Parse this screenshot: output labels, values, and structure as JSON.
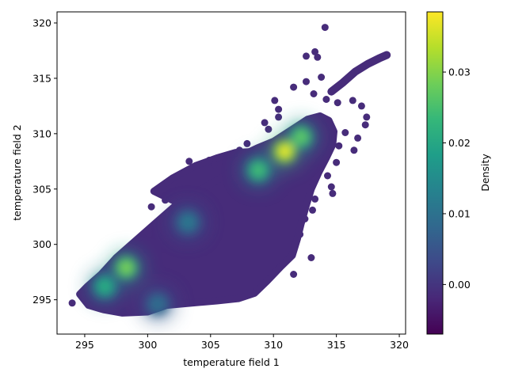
{
  "chart_data": {
    "type": "scatter",
    "title": "",
    "xlabel": "temperature field 1",
    "ylabel": "temperature field 2",
    "xlim": [
      292.8,
      320.5
    ],
    "ylim": [
      291.9,
      321.0
    ],
    "xticks": [
      295,
      300,
      305,
      310,
      315,
      320
    ],
    "yticks": [
      295,
      300,
      305,
      310,
      315,
      320
    ],
    "grid": false,
    "legend": "none",
    "colormap": "viridis",
    "colormap_stops": [
      "#440154",
      "#482878",
      "#3e4989",
      "#31688e",
      "#26828e",
      "#1f9e89",
      "#35b779",
      "#6ece58",
      "#b5de2b",
      "#fde725"
    ],
    "marker_color_low": "#472c7a",
    "colorbar": {
      "label": "Density",
      "min": -0.007,
      "max": 0.0385,
      "ticks": [
        0.0,
        0.01,
        0.02,
        0.03
      ],
      "tick_labels": [
        "0.00",
        "0.01",
        "0.02",
        "0.03"
      ]
    },
    "density_peaks": [
      {
        "x": 310.9,
        "y": 308.4,
        "density": 0.038
      },
      {
        "x": 298.3,
        "y": 297.9,
        "density": 0.03
      },
      {
        "x": 312.2,
        "y": 309.7,
        "density": 0.028
      },
      {
        "x": 308.8,
        "y": 306.7,
        "density": 0.025
      },
      {
        "x": 296.6,
        "y": 296.2,
        "density": 0.022
      },
      {
        "x": 303.2,
        "y": 302.0,
        "density": 0.012
      },
      {
        "x": 300.8,
        "y": 294.6,
        "density": 0.01
      }
    ],
    "main_cloud": [
      [
        294.6,
        295.5
      ],
      [
        295.2,
        296.2
      ],
      [
        296.3,
        297.3
      ],
      [
        297.5,
        298.8
      ],
      [
        299.0,
        300.3
      ],
      [
        300.5,
        301.8
      ],
      [
        302.0,
        303.3
      ],
      [
        303.5,
        304.7
      ],
      [
        305.0,
        305.9
      ],
      [
        306.5,
        307.0
      ],
      [
        307.6,
        308.1
      ],
      [
        308.7,
        308.7
      ],
      [
        310.0,
        309.3
      ],
      [
        311.5,
        310.4
      ],
      [
        312.7,
        311.3
      ],
      [
        313.7,
        311.6
      ],
      [
        314.4,
        311.2
      ],
      [
        314.8,
        310.2
      ],
      [
        314.7,
        309.0
      ],
      [
        314.2,
        307.8
      ],
      [
        313.6,
        306.5
      ],
      [
        313.0,
        305.0
      ],
      [
        312.6,
        303.5
      ],
      [
        312.2,
        301.9
      ],
      [
        311.9,
        300.5
      ],
      [
        311.5,
        299.0
      ],
      [
        310.6,
        298.0
      ],
      [
        309.5,
        296.7
      ],
      [
        308.5,
        295.6
      ],
      [
        307.2,
        295.1
      ],
      [
        305.5,
        294.9
      ],
      [
        303.5,
        294.7
      ],
      [
        301.5,
        294.5
      ],
      [
        300.0,
        293.9
      ],
      [
        298.0,
        293.8
      ],
      [
        296.5,
        294.1
      ],
      [
        295.3,
        294.5
      ]
    ],
    "upper_band": [
      [
        300.5,
        304.8
      ],
      [
        302.0,
        306.0
      ],
      [
        303.8,
        307.1
      ],
      [
        305.5,
        307.8
      ],
      [
        307.0,
        308.3
      ],
      [
        308.6,
        308.4
      ],
      [
        307.6,
        307.4
      ],
      [
        306.0,
        306.1
      ],
      [
        304.0,
        304.8
      ],
      [
        302.5,
        303.7
      ]
    ],
    "diagonal_tail": [
      [
        314.6,
        313.8
      ],
      [
        315.5,
        314.6
      ],
      [
        316.5,
        315.6
      ],
      [
        317.5,
        316.3
      ],
      [
        318.4,
        316.8
      ],
      [
        319.0,
        317.1
      ]
    ],
    "outliers": [
      [
        294.0,
        294.7
      ],
      [
        314.1,
        319.6
      ],
      [
        313.3,
        317.4
      ],
      [
        312.6,
        317.0
      ],
      [
        313.5,
        316.9
      ],
      [
        311.6,
        314.2
      ],
      [
        313.8,
        315.1
      ],
      [
        312.6,
        314.7
      ],
      [
        313.2,
        313.6
      ],
      [
        314.2,
        313.1
      ],
      [
        315.1,
        312.8
      ],
      [
        316.3,
        313.0
      ],
      [
        317.0,
        312.5
      ],
      [
        317.4,
        311.5
      ],
      [
        317.3,
        310.8
      ],
      [
        315.7,
        310.1
      ],
      [
        316.7,
        309.6
      ],
      [
        315.2,
        308.9
      ],
      [
        316.4,
        308.5
      ],
      [
        315.0,
        307.4
      ],
      [
        314.3,
        306.2
      ],
      [
        314.6,
        305.2
      ],
      [
        314.7,
        304.6
      ],
      [
        313.3,
        304.1
      ],
      [
        313.1,
        303.1
      ],
      [
        312.5,
        302.3
      ],
      [
        312.1,
        300.9
      ],
      [
        310.4,
        311.5
      ],
      [
        310.1,
        313.0
      ],
      [
        310.4,
        312.2
      ],
      [
        309.3,
        311.0
      ],
      [
        309.6,
        310.4
      ],
      [
        303.3,
        307.5
      ],
      [
        304.9,
        307.6
      ],
      [
        305.3,
        307.2
      ],
      [
        307.3,
        308.5
      ],
      [
        307.9,
        309.1
      ],
      [
        300.3,
        303.4
      ],
      [
        301.4,
        304.0
      ],
      [
        302.5,
        305.2
      ],
      [
        313.0,
        298.8
      ],
      [
        311.6,
        297.3
      ]
    ]
  }
}
